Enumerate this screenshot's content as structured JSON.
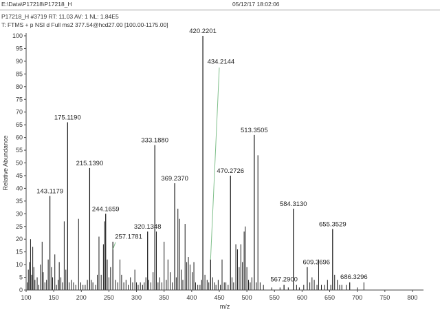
{
  "header": {
    "file_path": "E:\\Data\\P17218\\P17218_H",
    "datetime": "05/12/17 18:02:06",
    "scan_info": "P17218_H #3719   RT: 11.03   AV: 1   NL: 1.84E5",
    "filter": "T: FTMS + p NSI d Full ms2 377.54@hcd27.00 [100.00-1175.00]"
  },
  "chart_data": {
    "type": "bar",
    "title": "",
    "xlabel": "m/z",
    "ylabel": "Relative Abundance",
    "xlim": [
      100,
      820
    ],
    "ylim": [
      0,
      100
    ],
    "xticks": [
      100,
      150,
      200,
      250,
      300,
      350,
      400,
      450,
      500,
      550,
      600,
      650,
      700,
      750,
      800
    ],
    "yticks": [
      0,
      5,
      10,
      15,
      20,
      25,
      30,
      35,
      40,
      45,
      50,
      55,
      60,
      65,
      70,
      75,
      80,
      85,
      90,
      95,
      100
    ],
    "labeled_peaks": [
      {
        "mz": 420.2201,
        "intensity": 100,
        "label": "420.2201"
      },
      {
        "mz": 434.2144,
        "intensity": 12,
        "label": "434.2144"
      },
      {
        "mz": 175.119,
        "intensity": 66,
        "label": "175.1190"
      },
      {
        "mz": 513.3505,
        "intensity": 61,
        "label": "513.3505"
      },
      {
        "mz": 333.188,
        "intensity": 57,
        "label": "333.1880"
      },
      {
        "mz": 215.139,
        "intensity": 48,
        "label": "215.1390"
      },
      {
        "mz": 470.2726,
        "intensity": 45,
        "label": "470.2726"
      },
      {
        "mz": 369.237,
        "intensity": 42,
        "label": "369.2370"
      },
      {
        "mz": 143.1179,
        "intensity": 37,
        "label": "143.1179"
      },
      {
        "mz": 584.313,
        "intensity": 32,
        "label": "584.3130"
      },
      {
        "mz": 244.1659,
        "intensity": 30,
        "label": "244.1659"
      },
      {
        "mz": 655.3529,
        "intensity": 24,
        "label": "655.3529"
      },
      {
        "mz": 320.1348,
        "intensity": 23,
        "label": "320.1348"
      },
      {
        "mz": 257.1781,
        "intensity": 19,
        "label": "257.1781"
      },
      {
        "mz": 609.3696,
        "intensity": 9,
        "label": "609.3696"
      },
      {
        "mz": 686.3296,
        "intensity": 3,
        "label": "686.3296"
      },
      {
        "mz": 567.29,
        "intensity": 2,
        "label": "567.2900"
      }
    ],
    "unlabeled_peaks": [
      [
        102,
        3
      ],
      [
        104,
        8
      ],
      [
        106,
        11
      ],
      [
        108,
        20
      ],
      [
        110,
        6
      ],
      [
        112,
        17
      ],
      [
        114,
        9
      ],
      [
        116,
        4
      ],
      [
        120,
        5
      ],
      [
        123,
        2
      ],
      [
        126,
        10
      ],
      [
        129,
        19
      ],
      [
        131,
        7
      ],
      [
        134,
        3
      ],
      [
        137,
        4
      ],
      [
        140,
        12
      ],
      [
        146,
        9
      ],
      [
        148,
        5
      ],
      [
        152,
        14
      ],
      [
        155,
        2
      ],
      [
        158,
        4
      ],
      [
        160,
        11
      ],
      [
        163,
        5
      ],
      [
        166,
        3
      ],
      [
        169,
        27
      ],
      [
        172,
        8
      ],
      [
        178,
        3
      ],
      [
        182,
        4
      ],
      [
        186,
        3
      ],
      [
        190,
        2
      ],
      [
        195,
        28
      ],
      [
        199,
        3
      ],
      [
        203,
        2
      ],
      [
        207,
        2
      ],
      [
        211,
        4
      ],
      [
        218,
        4
      ],
      [
        221,
        3
      ],
      [
        226,
        2
      ],
      [
        229,
        6
      ],
      [
        232,
        21
      ],
      [
        236,
        6
      ],
      [
        240,
        18
      ],
      [
        242,
        27
      ],
      [
        247,
        12
      ],
      [
        250,
        5
      ],
      [
        253,
        9
      ],
      [
        262,
        4
      ],
      [
        266,
        3
      ],
      [
        270,
        12
      ],
      [
        273,
        6
      ],
      [
        277,
        3
      ],
      [
        281,
        4
      ],
      [
        285,
        2
      ],
      [
        289,
        5
      ],
      [
        293,
        3
      ],
      [
        297,
        8
      ],
      [
        300,
        3
      ],
      [
        303,
        2
      ],
      [
        307,
        3
      ],
      [
        311,
        2
      ],
      [
        314,
        3
      ],
      [
        317,
        5
      ],
      [
        322,
        4
      ],
      [
        326,
        3
      ],
      [
        330,
        7
      ],
      [
        336,
        23
      ],
      [
        339,
        3
      ],
      [
        342,
        5
      ],
      [
        346,
        3
      ],
      [
        350,
        19
      ],
      [
        354,
        4
      ],
      [
        357,
        12
      ],
      [
        361,
        7
      ],
      [
        365,
        3
      ],
      [
        372,
        5
      ],
      [
        375,
        32
      ],
      [
        378,
        28
      ],
      [
        381,
        8
      ],
      [
        384,
        4
      ],
      [
        388,
        26
      ],
      [
        391,
        11
      ],
      [
        394,
        13
      ],
      [
        397,
        10
      ],
      [
        401,
        7
      ],
      [
        404,
        11
      ],
      [
        407,
        3
      ],
      [
        411,
        2
      ],
      [
        415,
        2
      ],
      [
        418,
        4
      ],
      [
        424,
        6
      ],
      [
        428,
        4
      ],
      [
        431,
        3
      ],
      [
        438,
        5
      ],
      [
        441,
        3
      ],
      [
        444,
        2
      ],
      [
        448,
        4
      ],
      [
        452,
        2
      ],
      [
        455,
        12
      ],
      [
        459,
        3
      ],
      [
        462,
        3
      ],
      [
        466,
        2
      ],
      [
        473,
        5
      ],
      [
        476,
        3
      ],
      [
        480,
        18
      ],
      [
        483,
        16
      ],
      [
        486,
        9
      ],
      [
        489,
        18
      ],
      [
        492,
        11
      ],
      [
        495,
        23
      ],
      [
        497,
        25
      ],
      [
        500,
        9
      ],
      [
        503,
        4
      ],
      [
        506,
        3
      ],
      [
        509,
        5
      ],
      [
        517,
        3
      ],
      [
        520,
        53
      ],
      [
        524,
        3
      ],
      [
        530,
        2
      ],
      [
        545,
        1
      ],
      [
        560,
        1
      ],
      [
        575,
        1
      ],
      [
        590,
        2
      ],
      [
        595,
        1
      ],
      [
        603,
        2
      ],
      [
        614,
        3
      ],
      [
        618,
        5
      ],
      [
        622,
        4
      ],
      [
        627,
        2
      ],
      [
        630,
        12
      ],
      [
        635,
        2
      ],
      [
        641,
        2
      ],
      [
        646,
        4
      ],
      [
        652,
        2
      ],
      [
        659,
        6
      ],
      [
        664,
        4
      ],
      [
        668,
        2
      ],
      [
        672,
        2
      ],
      [
        680,
        2
      ],
      [
        700,
        1
      ],
      [
        712,
        3
      ]
    ]
  }
}
